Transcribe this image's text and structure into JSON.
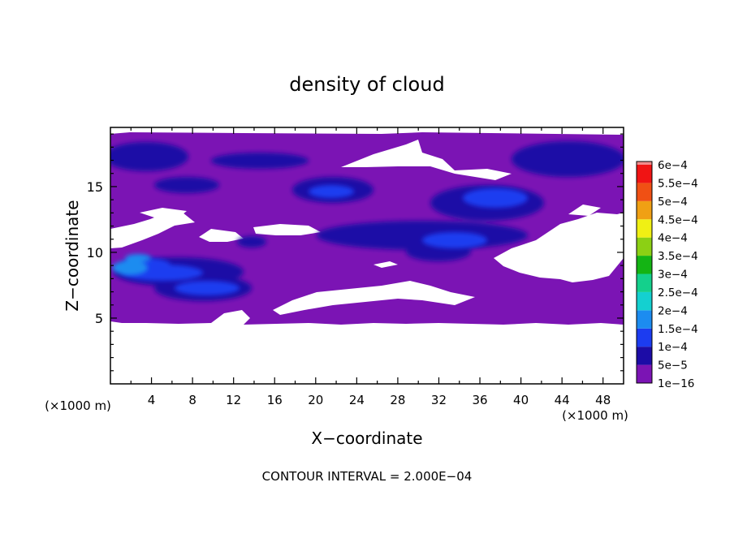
{
  "chart_data": {
    "type": "heatmap",
    "title": "density of cloud",
    "xlabel": "X−coordinate",
    "ylabel": "Z−coordinate",
    "x_unit_left": "(×1000 m)",
    "x_unit_right": "(×1000 m)",
    "xlim": [
      0,
      50
    ],
    "ylim": [
      0,
      19.5
    ],
    "x_ticks": [
      4,
      8,
      12,
      16,
      20,
      24,
      28,
      32,
      36,
      40,
      44,
      48
    ],
    "y_ticks": [
      5,
      10,
      15
    ],
    "footer": "CONTOUR INTERVAL = 2.000E−04",
    "colorbar": {
      "labels": [
        "1e−16",
        "5e−5",
        "1e−4",
        "1.5e−4",
        "2e−4",
        "2.5e−4",
        "3e−4",
        "3.5e−4",
        "4e−4",
        "4.5e−4",
        "5e−4",
        "5.5e−4",
        "6e−4"
      ],
      "colors": [
        "#7b14b4",
        "#1c0ca6",
        "#1c3cf0",
        "#1c8cf0",
        "#14d0d0",
        "#14d08c",
        "#14b414",
        "#8cd014",
        "#f0f014",
        "#f0a014",
        "#f05014",
        "#f01414",
        "#f08c8c"
      ]
    }
  }
}
